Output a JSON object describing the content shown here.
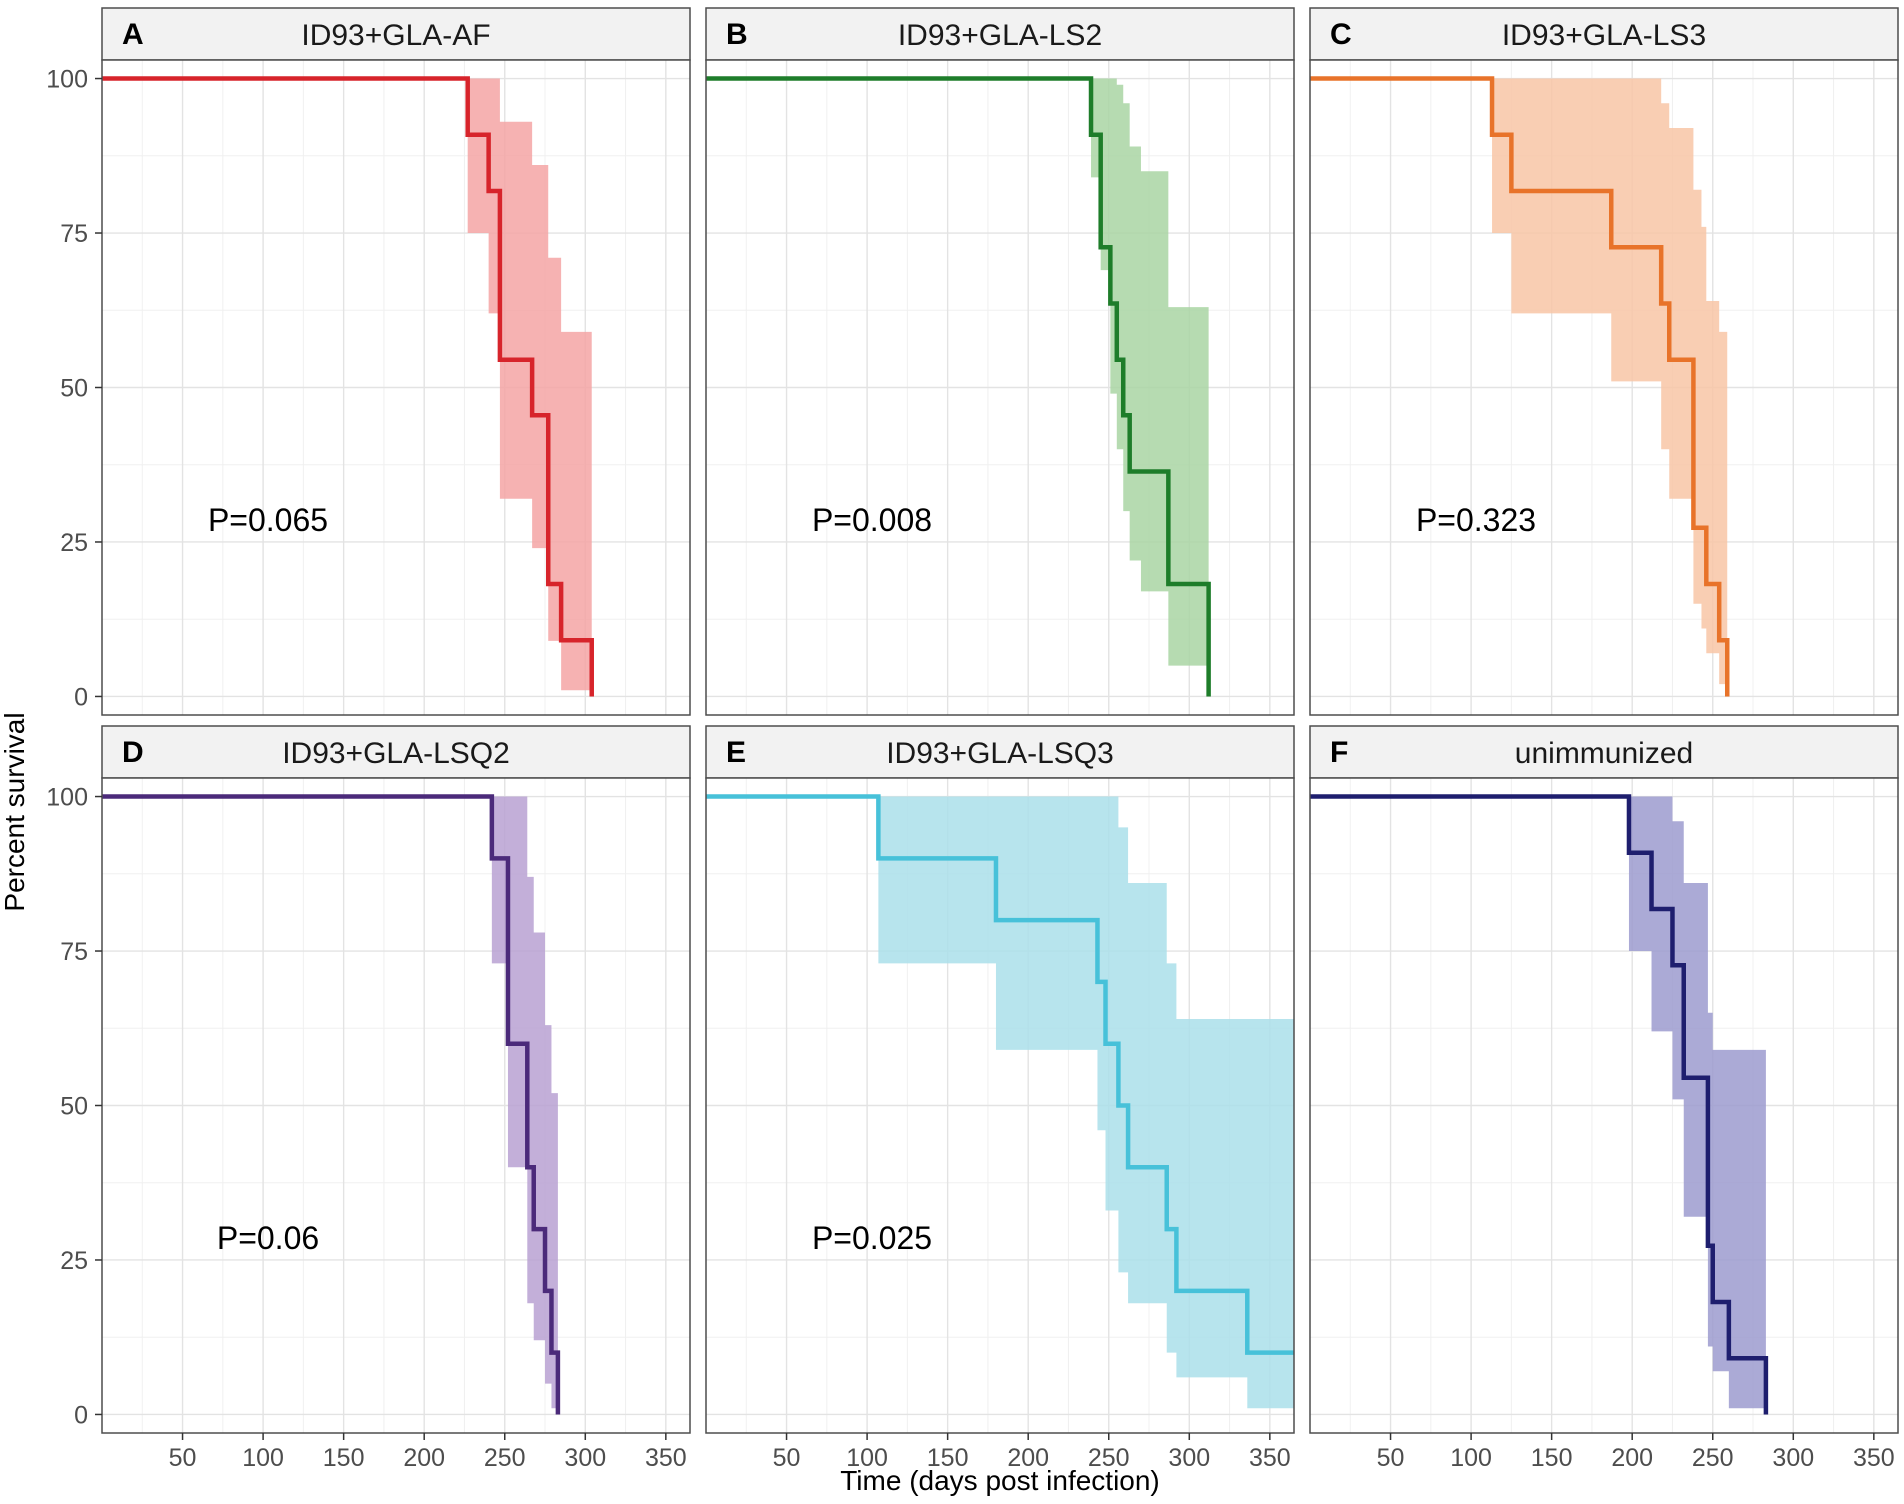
{
  "chart_data": {
    "type": "line",
    "subtype": "kaplan-meier survival with confidence bands",
    "xlabel": "Time (days post infection)",
    "ylabel": "Percent survival",
    "xlim": [
      0,
      365
    ],
    "ylim": [
      -3,
      103
    ],
    "x_ticks": [
      50,
      100,
      150,
      200,
      250,
      300,
      350
    ],
    "y_ticks": [
      0,
      25,
      50,
      75,
      100
    ],
    "panels": [
      {
        "letter": "A",
        "title": "ID93+GLA-AF",
        "pvalue": "P=0.065",
        "color": "#d7242b",
        "band_color": "#f4a5a5",
        "steps": [
          [
            0,
            100
          ],
          [
            227,
            100
          ],
          [
            227,
            90.9
          ],
          [
            240,
            90.9
          ],
          [
            240,
            81.8
          ],
          [
            247,
            81.8
          ],
          [
            247,
            54.5
          ],
          [
            267,
            54.5
          ],
          [
            267,
            45.5
          ],
          [
            277,
            45.5
          ],
          [
            277,
            18.2
          ],
          [
            285,
            18.2
          ],
          [
            285,
            9.1
          ],
          [
            304,
            9.1
          ],
          [
            304,
            0
          ]
        ],
        "band": [
          [
            0,
            100,
            100
          ],
          [
            227,
            75,
            100
          ],
          [
            233,
            75,
            100
          ],
          [
            240,
            62,
            100
          ],
          [
            247,
            32,
            93
          ],
          [
            267,
            24,
            86
          ],
          [
            277,
            9,
            71
          ],
          [
            285,
            1,
            59
          ],
          [
            304,
            1,
            59
          ]
        ]
      },
      {
        "letter": "B",
        "title": "ID93+GLA-LS2",
        "pvalue": "P=0.008",
        "color": "#1e7d2a",
        "band_color": "#a9d5a3",
        "steps": [
          [
            0,
            100
          ],
          [
            239,
            100
          ],
          [
            239,
            90.9
          ],
          [
            245,
            90.9
          ],
          [
            245,
            72.7
          ],
          [
            251,
            72.7
          ],
          [
            251,
            63.6
          ],
          [
            255,
            63.6
          ],
          [
            255,
            54.5
          ],
          [
            259,
            54.5
          ],
          [
            259,
            45.5
          ],
          [
            263,
            45.5
          ],
          [
            263,
            36.4
          ],
          [
            287,
            36.4
          ],
          [
            287,
            18.2
          ],
          [
            312,
            18.2
          ],
          [
            312,
            0
          ]
        ],
        "band": [
          [
            0,
            100,
            100
          ],
          [
            239,
            84,
            100
          ],
          [
            245,
            69,
            100
          ],
          [
            251,
            49,
            100
          ],
          [
            255,
            40,
            99
          ],
          [
            259,
            30,
            96
          ],
          [
            263,
            22,
            89
          ],
          [
            270,
            17,
            85
          ],
          [
            287,
            5,
            63
          ],
          [
            300,
            5,
            63
          ],
          [
            312,
            5,
            63
          ]
        ]
      },
      {
        "letter": "C",
        "title": "ID93+GLA-LS3",
        "pvalue": "P=0.323",
        "color": "#e8732a",
        "band_color": "#f8c6a6",
        "steps": [
          [
            0,
            100
          ],
          [
            113,
            100
          ],
          [
            113,
            90.9
          ],
          [
            125,
            90.9
          ],
          [
            125,
            81.8
          ],
          [
            187,
            81.8
          ],
          [
            187,
            72.7
          ],
          [
            218,
            72.7
          ],
          [
            218,
            63.6
          ],
          [
            223,
            63.6
          ],
          [
            223,
            54.5
          ],
          [
            238,
            54.5
          ],
          [
            238,
            27.3
          ],
          [
            246,
            27.3
          ],
          [
            246,
            18.2
          ],
          [
            254,
            18.2
          ],
          [
            254,
            9.1
          ],
          [
            259,
            9.1
          ],
          [
            259,
            0
          ]
        ],
        "band": [
          [
            0,
            100,
            100
          ],
          [
            113,
            75,
            100
          ],
          [
            125,
            62,
            100
          ],
          [
            187,
            51,
            100
          ],
          [
            218,
            40,
            96
          ],
          [
            223,
            32,
            92
          ],
          [
            238,
            15,
            82
          ],
          [
            243,
            11,
            76
          ],
          [
            246,
            7,
            64
          ],
          [
            254,
            2,
            59
          ],
          [
            259,
            2,
            59
          ]
        ]
      },
      {
        "letter": "D",
        "title": "ID93+GLA-LSQ2",
        "pvalue": "P=0.06",
        "color": "#4b2a7a",
        "band_color": "#b8a1d2",
        "steps": [
          [
            0,
            100
          ],
          [
            242,
            100
          ],
          [
            242,
            90
          ],
          [
            252,
            90
          ],
          [
            252,
            60
          ],
          [
            264,
            60
          ],
          [
            264,
            40
          ],
          [
            268,
            40
          ],
          [
            268,
            30
          ],
          [
            275,
            30
          ],
          [
            275,
            20
          ],
          [
            279,
            20
          ],
          [
            279,
            10
          ],
          [
            283,
            10
          ],
          [
            283,
            0
          ]
        ],
        "band": [
          [
            0,
            100,
            100
          ],
          [
            242,
            73,
            100
          ],
          [
            252,
            40,
            100
          ],
          [
            264,
            18,
            87
          ],
          [
            268,
            12,
            78
          ],
          [
            275,
            5,
            63
          ],
          [
            279,
            1,
            52
          ],
          [
            283,
            1,
            52
          ]
        ]
      },
      {
        "letter": "E",
        "title": "ID93+GLA-LSQ3",
        "pvalue": "P=0.025",
        "color": "#47c1d9",
        "band_color": "#aadfea",
        "steps": [
          [
            0,
            100
          ],
          [
            107,
            100
          ],
          [
            107,
            90
          ],
          [
            180,
            90
          ],
          [
            180,
            80
          ],
          [
            243,
            80
          ],
          [
            243,
            70
          ],
          [
            248,
            70
          ],
          [
            248,
            60
          ],
          [
            256,
            60
          ],
          [
            256,
            50
          ],
          [
            262,
            50
          ],
          [
            262,
            40
          ],
          [
            286,
            40
          ],
          [
            286,
            30
          ],
          [
            292,
            30
          ],
          [
            292,
            20
          ],
          [
            336,
            20
          ],
          [
            336,
            10
          ],
          [
            365,
            10
          ]
        ],
        "band": [
          [
            0,
            100,
            100
          ],
          [
            107,
            73,
            100
          ],
          [
            180,
            59,
            100
          ],
          [
            243,
            46,
            100
          ],
          [
            248,
            33,
            100
          ],
          [
            256,
            23,
            95
          ],
          [
            262,
            18,
            86
          ],
          [
            286,
            10,
            73
          ],
          [
            292,
            6,
            64
          ],
          [
            336,
            1,
            64
          ],
          [
            365,
            1,
            64
          ]
        ]
      },
      {
        "letter": "F",
        "title": "unimmunized",
        "pvalue": "",
        "color": "#1e1e6e",
        "band_color": "#9c9bcf",
        "steps": [
          [
            0,
            100
          ],
          [
            198,
            100
          ],
          [
            198,
            90.9
          ],
          [
            212,
            90.9
          ],
          [
            212,
            81.8
          ],
          [
            225,
            81.8
          ],
          [
            225,
            72.7
          ],
          [
            232,
            72.7
          ],
          [
            232,
            54.5
          ],
          [
            247,
            54.5
          ],
          [
            247,
            27.3
          ],
          [
            250,
            27.3
          ],
          [
            250,
            18.2
          ],
          [
            260,
            18.2
          ],
          [
            260,
            9.1
          ],
          [
            283,
            9.1
          ],
          [
            283,
            0
          ]
        ],
        "band": [
          [
            0,
            100,
            100
          ],
          [
            198,
            75,
            100
          ],
          [
            212,
            62,
            100
          ],
          [
            225,
            51,
            96
          ],
          [
            232,
            32,
            86
          ],
          [
            247,
            11,
            65
          ],
          [
            250,
            7,
            59
          ],
          [
            260,
            1,
            59
          ],
          [
            283,
            1,
            59
          ]
        ]
      }
    ]
  }
}
